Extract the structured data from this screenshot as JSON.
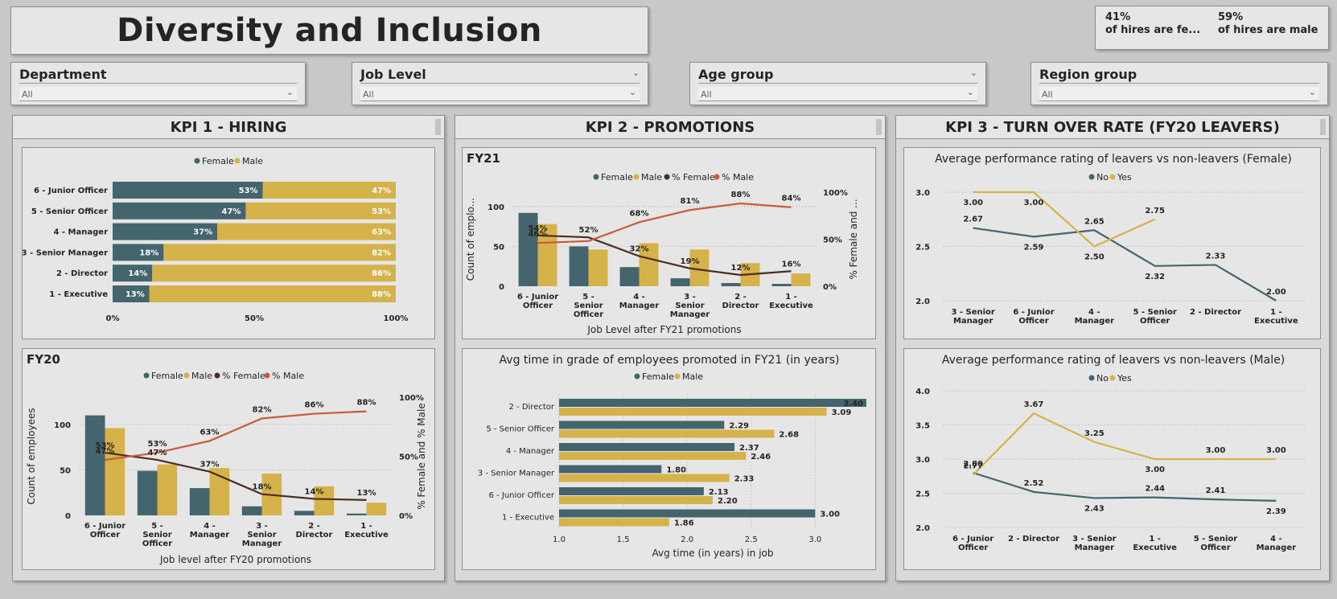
{
  "title": "Diversity and Inclusion",
  "hires": {
    "female": {
      "pct": "41%",
      "label": "of hires are fe..."
    },
    "male": {
      "pct": "59%",
      "label": "of hires are male"
    }
  },
  "slicers": [
    {
      "title": "Department",
      "value": "All"
    },
    {
      "title": "Job Level",
      "value": "All"
    },
    {
      "title": "Age group",
      "value": "All"
    },
    {
      "title": "Region group",
      "value": "All"
    }
  ],
  "kpis": {
    "k1": "KPI 1 - HIRING",
    "k2": "KPI 2 - PROMOTIONS",
    "k3": "KPI 3 - TURN OVER RATE (FY20 LEAVERS)"
  },
  "colors": {
    "female": "#44646e",
    "male": "#d6b24a",
    "pct_female": "#4b2e1e",
    "pct_male": "#c95a3c"
  },
  "chart_data": [
    {
      "id": "hiring",
      "type": "bar",
      "orientation": "horizontal-stacked-100",
      "legend": [
        "Female",
        "Male"
      ],
      "categories": [
        "6 - Junior Officer",
        "5 - Senior Officer",
        "4 - Manager",
        "3 - Senior Manager",
        "2 - Director",
        "1 - Executive"
      ],
      "series": [
        {
          "name": "Female",
          "values": [
            53,
            47,
            37,
            18,
            14,
            13
          ]
        },
        {
          "name": "Male",
          "values": [
            47,
            53,
            63,
            82,
            86,
            88
          ]
        }
      ],
      "xticks": [
        "0%",
        "50%",
        "100%"
      ]
    },
    {
      "id": "fy20",
      "type": "bar",
      "title": "FY20",
      "legend": [
        "Female",
        "Male",
        "% Female",
        "% Male"
      ],
      "categories": [
        "6 - Junior|Officer",
        "5 -|Senior|Officer",
        "4 -|Manager",
        "3 -|Senior|Manager",
        "2 -|Director",
        "1 -|Executive"
      ],
      "series": [
        {
          "name": "Female",
          "values": [
            110,
            49,
            30,
            10,
            5,
            2
          ]
        },
        {
          "name": "Male",
          "values": [
            96,
            56,
            52,
            46,
            32,
            14
          ]
        }
      ],
      "line_series": [
        {
          "name": "% Female",
          "values": [
            53,
            47,
            37,
            18,
            14,
            13
          ]
        },
        {
          "name": "% Male",
          "values": [
            47,
            53,
            63,
            82,
            86,
            88
          ]
        }
      ],
      "line_labels": [
        "47%",
        "53%",
        "63%",
        "82%",
        "86%",
        "88%"
      ],
      "female_labels": [
        "53%",
        "47%",
        "37%",
        "18%",
        "14%",
        "13%"
      ],
      "xlabel": "Job level after FY20 promotions",
      "ylabel": "Count of employees",
      "y2label": "% Female and % Male",
      "yticks": [
        "0",
        "50",
        "100"
      ],
      "y2ticks": [
        "0%",
        "50%",
        "100%"
      ],
      "ylim": [
        0,
        130
      ]
    },
    {
      "id": "fy21",
      "type": "bar",
      "title": "FY21",
      "legend": [
        "Female",
        "Male",
        "% Female",
        "% Male"
      ],
      "categories": [
        "6 - Junior|Officer",
        "5 -|Senior|Officer",
        "4 -|Manager",
        "3 -|Senior|Manager",
        "2 -|Director",
        "1 -|Executive"
      ],
      "series": [
        {
          "name": "Female",
          "values": [
            92,
            50,
            24,
            10,
            4,
            3
          ]
        },
        {
          "name": "Male",
          "values": [
            78,
            46,
            54,
            46,
            29,
            16
          ]
        }
      ],
      "line_series": [
        {
          "name": "% Female",
          "values": [
            54,
            52,
            32,
            19,
            12,
            16
          ]
        },
        {
          "name": "% Male",
          "values": [
            46,
            48,
            68,
            81,
            88,
            84
          ]
        }
      ],
      "female_labels": [
        "54%",
        "52%",
        "32%",
        "19%",
        "12%",
        "16%"
      ],
      "male_labels": [
        "46%",
        "",
        "68%",
        "81%",
        "88%",
        "84%"
      ],
      "xlabel": "Job Level after FY21 promotions",
      "ylabel": "Count of emplo...",
      "y2label": "% Female and ...",
      "yticks": [
        "0",
        "50",
        "100"
      ],
      "y2ticks": [
        "0%",
        "50%",
        "100%"
      ],
      "ylim": [
        0,
        118
      ]
    },
    {
      "id": "avgtime",
      "type": "bar",
      "orientation": "horizontal-clustered",
      "title": "Avg time in grade of employees promoted in FY21 (in years)",
      "legend": [
        "Female",
        "Male"
      ],
      "categories": [
        "2 - Director",
        "5 - Senior Officer",
        "4 - Manager",
        "3 - Senior Manager",
        "6 - Junior Officer",
        "1 - Executive"
      ],
      "series": [
        {
          "name": "Female",
          "values": [
            3.4,
            2.29,
            2.37,
            1.8,
            2.13,
            3.0
          ]
        },
        {
          "name": "Male",
          "values": [
            3.09,
            2.68,
            2.46,
            2.33,
            2.2,
            1.86
          ]
        }
      ],
      "labels_female": [
        "3.40",
        "2.29",
        "2.37",
        "1.80",
        "2.13",
        "3.00"
      ],
      "labels_male": [
        "3.09",
        "2.68",
        "2.46",
        "2.33",
        "2.20",
        "1.86"
      ],
      "xlabel": "Avg time (in years) in job",
      "xticks": [
        "1.0",
        "1.5",
        "2.0",
        "2.5",
        "3.0"
      ],
      "xlim": [
        1.0,
        3.4
      ]
    },
    {
      "id": "perf_female",
      "type": "line",
      "title": "Average performance rating of leavers vs non-leavers (Female)",
      "legend": [
        "No",
        "Yes"
      ],
      "categories": [
        "3 - Senior|Manager",
        "6 - Junior|Officer",
        "4 -|Manager",
        "5 - Senior|Officer",
        "2 - Director",
        "1 -|Executive"
      ],
      "series": [
        {
          "name": "No",
          "values": [
            2.67,
            2.59,
            2.65,
            2.32,
            2.33,
            2.0
          ]
        },
        {
          "name": "Yes",
          "values": [
            3.0,
            3.0,
            2.5,
            2.75,
            null,
            null
          ]
        }
      ],
      "labels_no": [
        "2.67",
        "2.59",
        "2.65",
        "2.32",
        "2.33",
        "2.00"
      ],
      "labels_yes": [
        "3.00",
        "3.00",
        "2.50",
        "2.75",
        "",
        ""
      ],
      "yticks": [
        "2.0",
        "2.5",
        "3.0"
      ],
      "ylim": [
        2.0,
        3.0
      ]
    },
    {
      "id": "perf_male",
      "type": "line",
      "title": "Average performance rating of leavers vs non-leavers (Male)",
      "legend": [
        "No",
        "Yes"
      ],
      "categories": [
        "6 - Junior|Officer",
        "2 - Director",
        "3 - Senior|Manager",
        "1 -|Executive",
        "5 - Senior|Officer",
        "4 -|Manager"
      ],
      "series": [
        {
          "name": "No",
          "values": [
            2.8,
            2.52,
            2.43,
            2.44,
            2.41,
            2.39
          ]
        },
        {
          "name": "Yes",
          "values": [
            2.77,
            3.67,
            3.25,
            3.0,
            3.0,
            3.0
          ]
        }
      ],
      "labels_no": [
        "2.80",
        "2.52",
        "2.43",
        "2.44",
        "2.41",
        "2.39"
      ],
      "labels_yes": [
        "2.77",
        "3.67",
        "3.25",
        "3.00",
        "3.00",
        "3.00"
      ],
      "yticks": [
        "2.0",
        "2.5",
        "3.0",
        "3.5",
        "4.0"
      ],
      "ylim": [
        2.0,
        4.0
      ]
    }
  ]
}
